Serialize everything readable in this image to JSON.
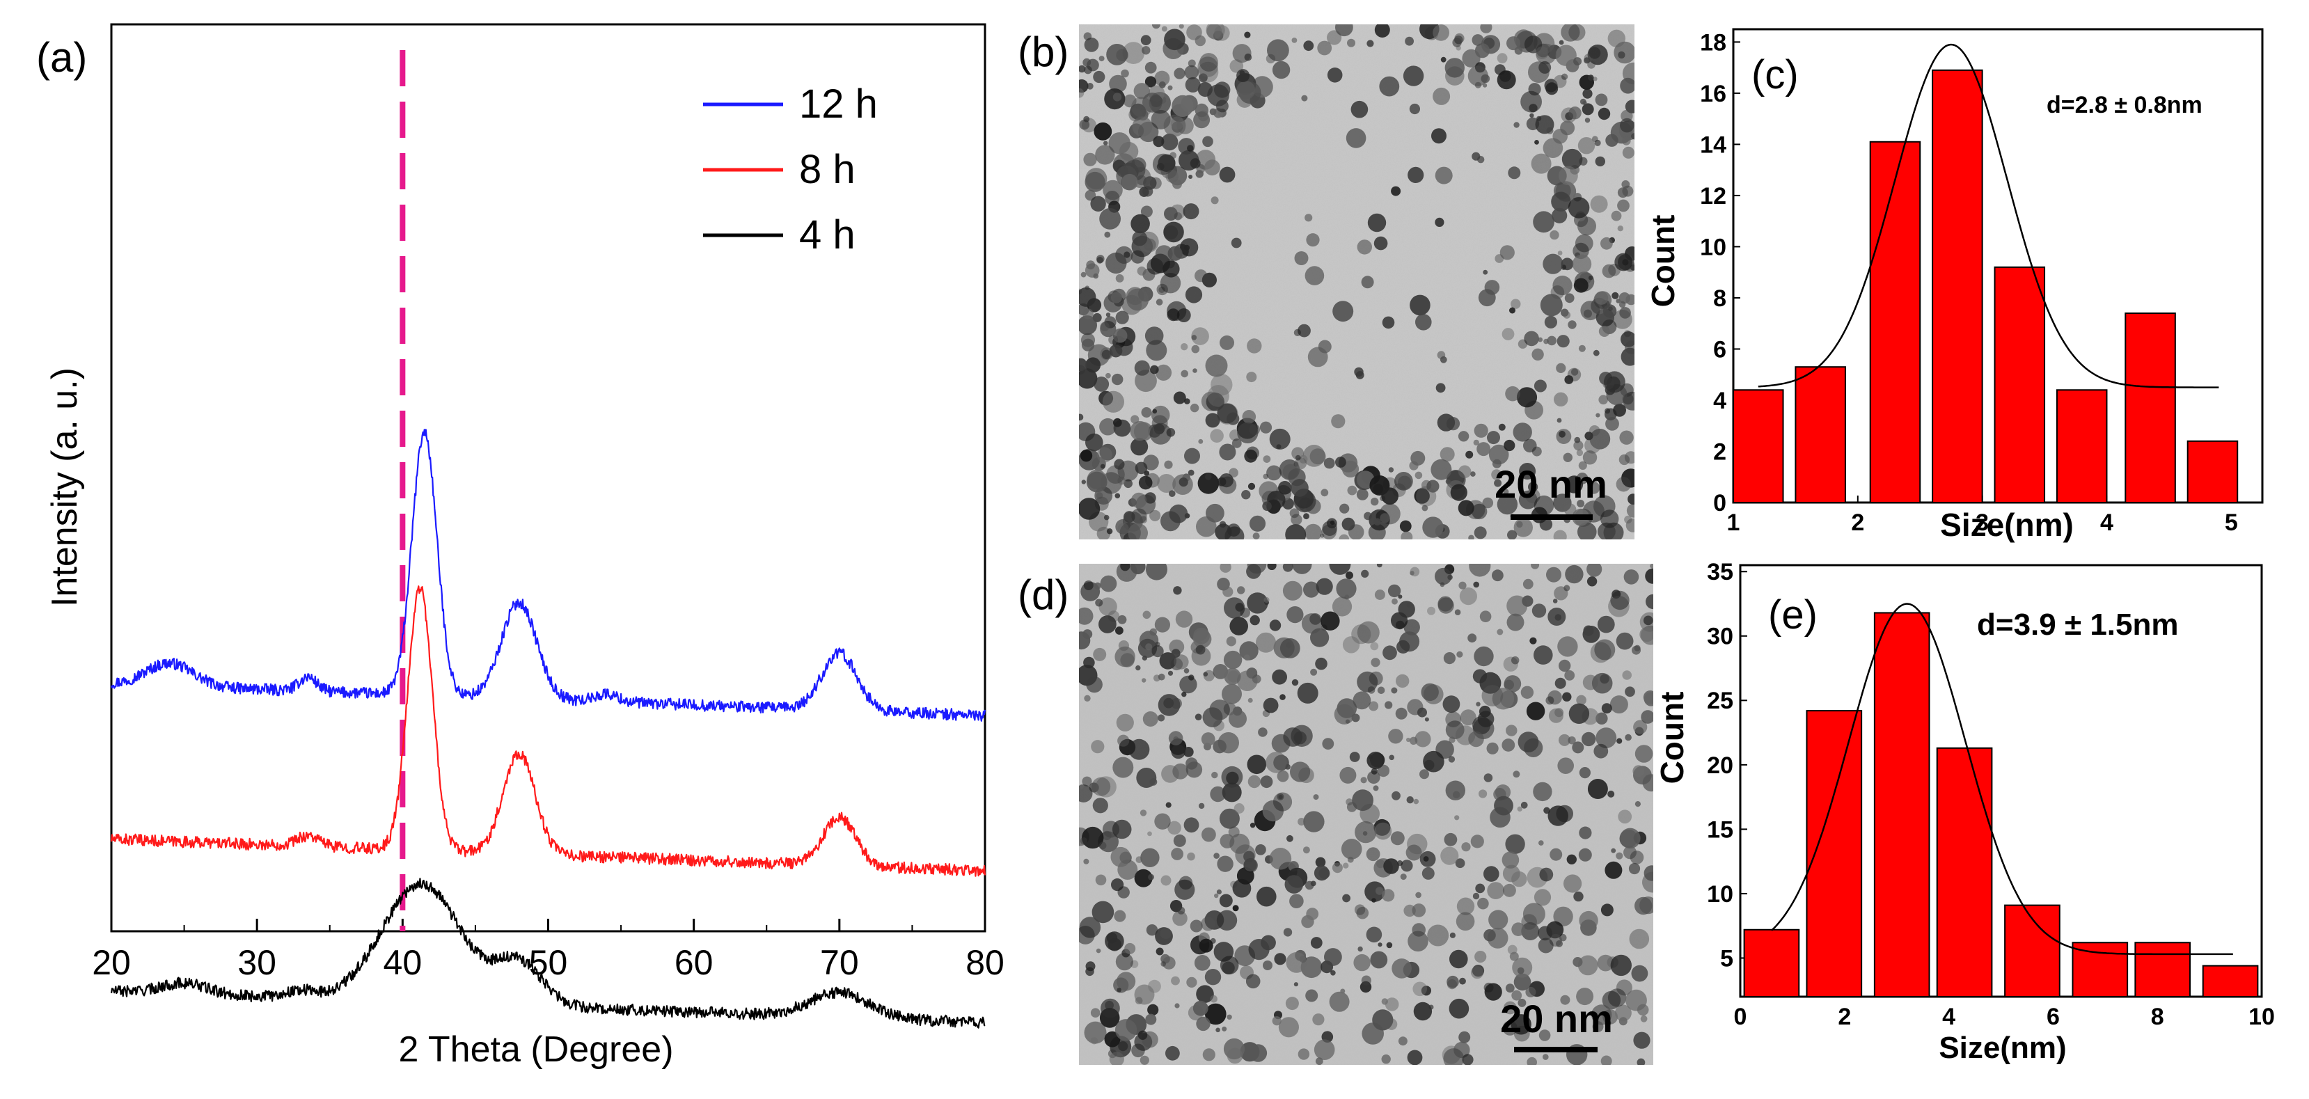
{
  "figure_type": "multi-panel scientific figure",
  "colors": {
    "blue": "#1a1aff",
    "red": "#ff1a1a",
    "black": "#000000",
    "dash": "#e6198c",
    "bar": "#ff0000"
  },
  "panels": {
    "a": {
      "label": "(a)"
    },
    "b": {
      "label": "(b)",
      "scale_bar": "20 nm"
    },
    "c": {
      "label": "(c)"
    },
    "d": {
      "label": "(d)",
      "scale_bar": "20 nm"
    },
    "e": {
      "label": "(e)"
    }
  },
  "chart_data": [
    {
      "id": "xrd",
      "type": "line",
      "xlabel": "2 Theta (Degree)",
      "ylabel": "Intensity (a. u.)",
      "xlim": [
        20,
        80
      ],
      "xticks": [
        20,
        30,
        40,
        50,
        60,
        70,
        80
      ],
      "reference_line_x": 40,
      "legend_position": "top-right",
      "series": [
        {
          "name": "12 h",
          "color": "#1a1aff",
          "baseline": 28.2,
          "slope": -0.06,
          "peaks": [
            [
              24,
              2.6,
              1.6
            ],
            [
              33.5,
              1.6,
              0.6
            ],
            [
              41.5,
              30,
              0.85
            ],
            [
              48,
              11,
              1.2
            ],
            [
              54,
              0.9,
              0.8
            ],
            [
              70,
              6.5,
              1.2
            ]
          ]
        },
        {
          "name": "8 h",
          "color": "#ff1a1a",
          "baseline": 10.5,
          "slope": -0.06,
          "peaks": [
            [
              33.5,
              1.2,
              0.8
            ],
            [
              41.2,
              30,
              0.85
            ],
            [
              48,
              11.5,
              1.1
            ],
            [
              70,
              5.5,
              1.1
            ]
          ]
        },
        {
          "name": "4 h",
          "color": "#000000",
          "baseline": -6.8,
          "slope": -0.06,
          "peaks": [
            [
              25,
              1.2,
              1.5
            ],
            [
              33,
              0.8,
              1.0
            ],
            [
              41.3,
              13.5,
              2.7
            ],
            [
              48,
              4.8,
              1.6
            ],
            [
              70,
              2.8,
              2.0
            ]
          ]
        }
      ]
    },
    {
      "id": "hist-c",
      "type": "bar",
      "xlabel": "Size(nm)",
      "ylabel": "Count",
      "annotation": "d=2.8 ± 0.8nm",
      "xlim": [
        1,
        5.25
      ],
      "ylim": [
        0,
        18.5
      ],
      "xticks": [
        1,
        2,
        3,
        4,
        5
      ],
      "yticks": [
        0,
        2,
        4,
        6,
        8,
        10,
        12,
        14,
        16,
        18
      ],
      "bar_width": 0.4,
      "categories": [
        1.2,
        1.7,
        2.3,
        2.8,
        3.3,
        3.8,
        4.35,
        4.85
      ],
      "values": [
        4.4,
        5.3,
        14.1,
        16.9,
        9.2,
        4.4,
        7.4,
        2.4
      ],
      "fit": {
        "type": "gaussian",
        "base": 4.5,
        "amp": 13.4,
        "center": 2.75,
        "sigma": 0.45
      }
    },
    {
      "id": "hist-e",
      "type": "bar",
      "xlabel": "Size(nm)",
      "ylabel": "Count",
      "annotation": "d=3.9 ± 1.5nm",
      "xlim": [
        0,
        10
      ],
      "ylim": [
        2,
        35.5
      ],
      "xticks": [
        0,
        2,
        4,
        6,
        8,
        10
      ],
      "yticks": [
        5,
        10,
        15,
        20,
        25,
        30,
        35
      ],
      "bar_width": 1.05,
      "categories": [
        0.6,
        1.8,
        3.1,
        4.3,
        5.6,
        6.9,
        8.1,
        9.4
      ],
      "values": [
        7.2,
        24.2,
        31.8,
        21.3,
        9.1,
        6.2,
        6.2,
        4.4
      ],
      "fit": {
        "type": "gaussian",
        "base": 5.3,
        "amp": 27.2,
        "center": 3.2,
        "sigma": 1.12
      }
    }
  ]
}
